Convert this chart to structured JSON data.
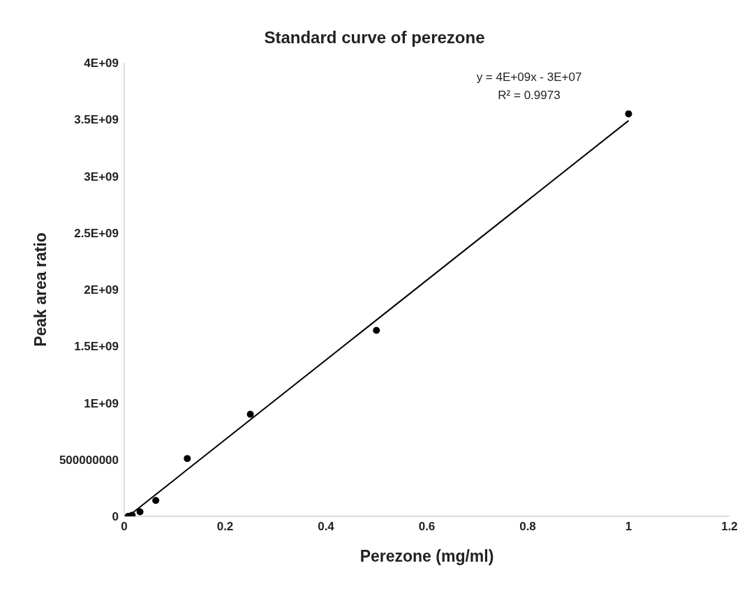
{
  "chart_data": {
    "type": "scatter",
    "title": "Standard curve of perezone",
    "xlabel": "Perezone (mg/ml)",
    "ylabel": "Peak area ratio",
    "xlim": [
      0,
      1.2
    ],
    "xticks": [
      0,
      0.2,
      0.4,
      0.6,
      0.8,
      1,
      1.2
    ],
    "ylim": [
      0,
      4000000000
    ],
    "yticks": [
      0,
      500000000,
      {
        "value": 1000000000,
        "label": "1E+09"
      },
      {
        "value": 1500000000,
        "label": "1.5E+09"
      },
      {
        "value": 2000000000,
        "label": "2E+09"
      },
      {
        "value": 2500000000,
        "label": "2.5E+09"
      },
      {
        "value": 3000000000,
        "label": "3E+09"
      },
      {
        "value": 3500000000,
        "label": "3.5E+09"
      },
      {
        "value": 4000000000,
        "label": "4E+09"
      }
    ],
    "grid": false,
    "legend": false,
    "series": [
      {
        "marker": "circle",
        "color": "#000000",
        "x": [
          0.0078,
          0.0156,
          0.03125,
          0.0625,
          0.125,
          0.25,
          0.5,
          1
        ],
        "values": [
          0,
          10000000,
          40000000,
          140000000,
          510000000,
          900000000,
          1640000000,
          3550000000
        ]
      },
      {
        "type": "line",
        "color": "#000000",
        "x": [
          0.0078,
          1
        ],
        "values": [
          0,
          3490000000
        ]
      }
    ],
    "annotations": [
      "y = 4E+09x - 3E+07",
      "R² = 0.9973"
    ]
  }
}
